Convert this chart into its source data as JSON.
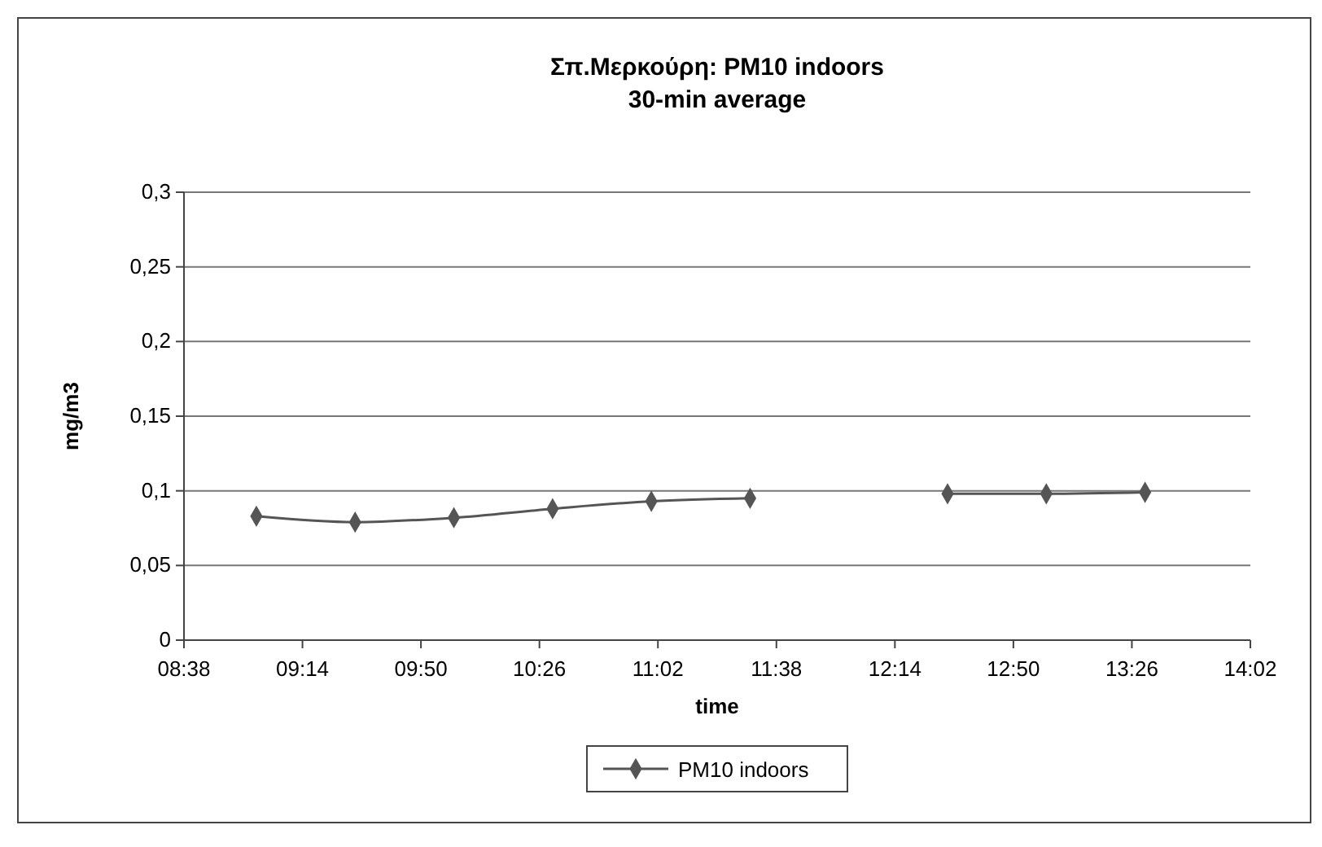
{
  "chart_data": {
    "type": "line",
    "title": "Σπ.Μερκούρη: PM10 indoors",
    "subtitle": "30-min average",
    "xlabel": "time",
    "ylabel": "mg/m3",
    "x": [
      9,
      9.5,
      10,
      10.5,
      11,
      11.5,
      12,
      12.5,
      13,
      13.5
    ],
    "series": [
      {
        "name": "PM10 indoors",
        "color": "#555555",
        "values": [
          0.083,
          0.079,
          0.082,
          0.088,
          0.093,
          0.095,
          null,
          0.098,
          0.098,
          0.099
        ]
      }
    ],
    "xlim": [
      8.6333,
      14.0333
    ],
    "xticks": [
      {
        "value": 8.6333,
        "label": "08:38"
      },
      {
        "value": 9.2333,
        "label": "09:14"
      },
      {
        "value": 9.8333,
        "label": "09:50"
      },
      {
        "value": 10.4333,
        "label": "10:26"
      },
      {
        "value": 11.0333,
        "label": "11:02"
      },
      {
        "value": 11.6333,
        "label": "11:38"
      },
      {
        "value": 12.2333,
        "label": "12:14"
      },
      {
        "value": 12.8333,
        "label": "12:50"
      },
      {
        "value": 13.4333,
        "label": "13:26"
      },
      {
        "value": 14.0333,
        "label": "14:02"
      }
    ],
    "ylim": [
      0,
      0.3
    ],
    "yticks": [
      {
        "value": 0,
        "label": "0"
      },
      {
        "value": 0.05,
        "label": "0,05"
      },
      {
        "value": 0.1,
        "label": "0,1"
      },
      {
        "value": 0.15,
        "label": "0,15"
      },
      {
        "value": 0.2,
        "label": "0,2"
      },
      {
        "value": 0.25,
        "label": "0,25"
      },
      {
        "value": 0.3,
        "label": "0,3"
      }
    ],
    "grid": "y",
    "legend": "bottom",
    "marker": "diamond",
    "line_style": "solid"
  }
}
